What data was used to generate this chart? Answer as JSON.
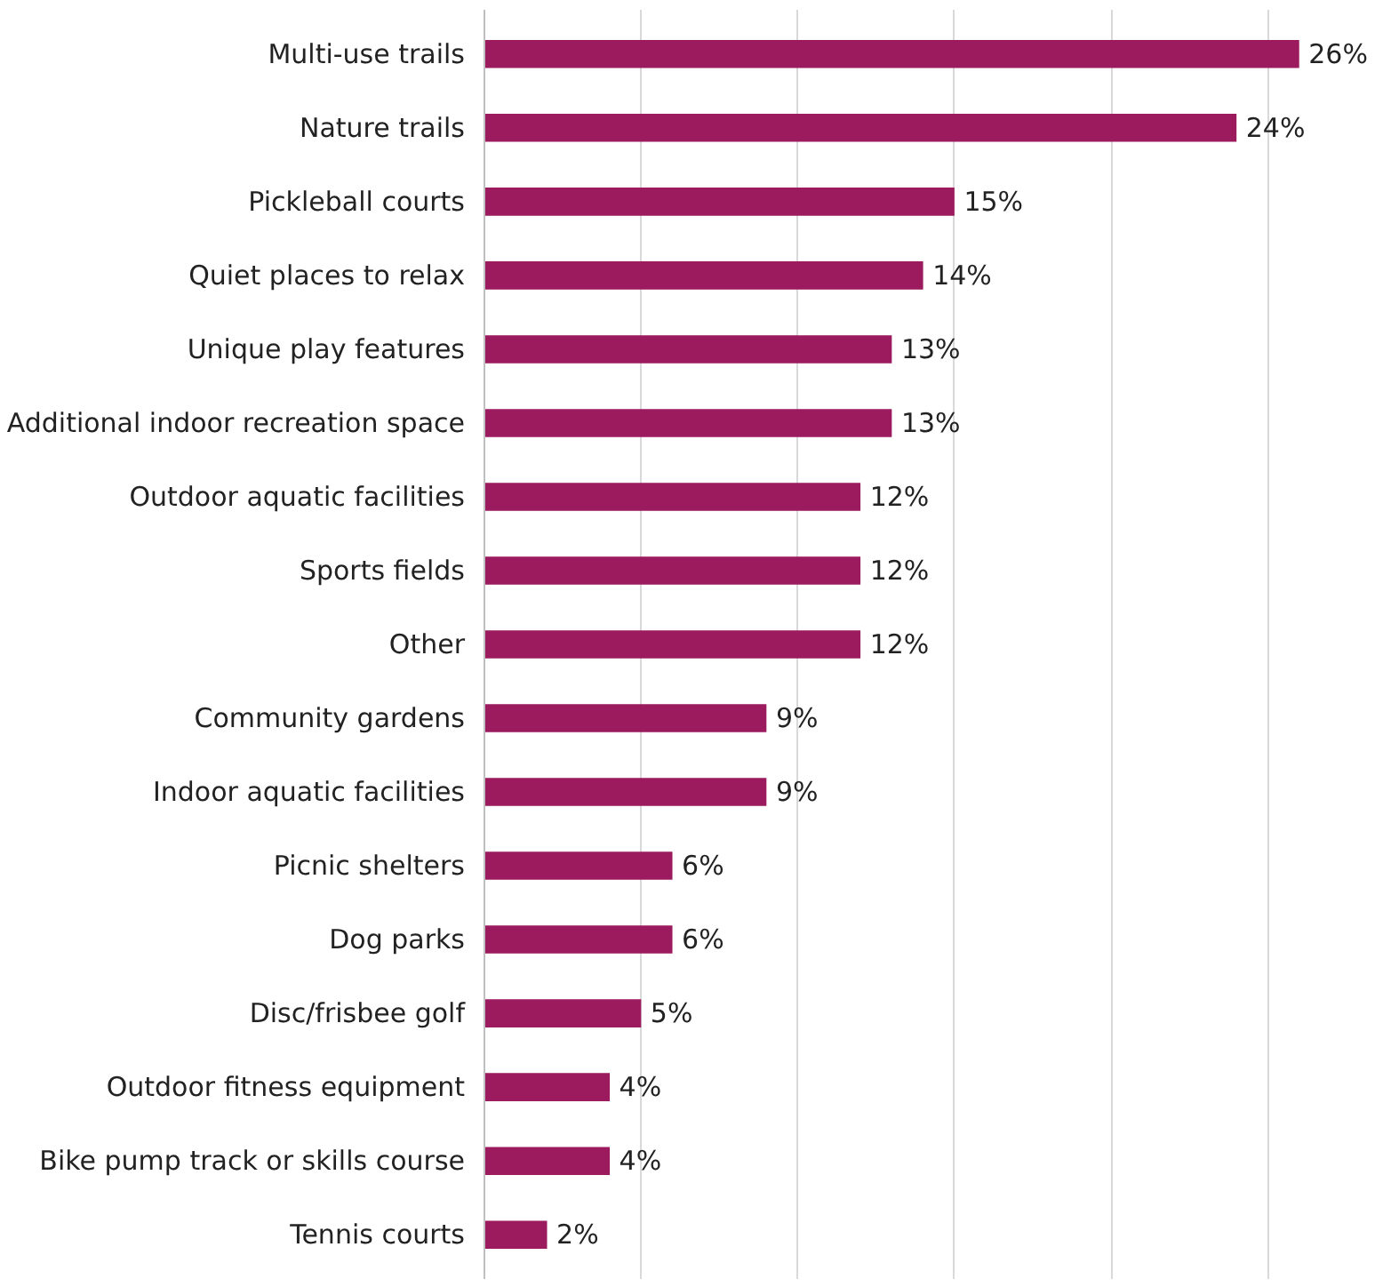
{
  "chart_data": {
    "type": "bar",
    "orientation": "horizontal",
    "categories": [
      "Multi-use trails",
      "Nature trails",
      "Pickleball courts",
      "Quiet places to relax",
      "Unique play features",
      "Additional indoor recreation space",
      "Outdoor aquatic facilities",
      "Sports fields",
      "Other",
      "Community gardens",
      "Indoor aquatic facilities",
      "Picnic shelters",
      "Dog parks",
      "Disc/frisbee golf",
      "Outdoor fitness equipment",
      "Bike pump track or skills course",
      "Tennis courts"
    ],
    "values": [
      26,
      24,
      15,
      14,
      13,
      13,
      12,
      12,
      12,
      9,
      9,
      6,
      6,
      5,
      4,
      4,
      2
    ],
    "value_labels": [
      "26%",
      "24%",
      "15%",
      "14%",
      "13%",
      "13%",
      "12%",
      "12%",
      "12%",
      "9%",
      "9%",
      "6%",
      "6%",
      "5%",
      "4%",
      "4%",
      "2%"
    ],
    "color": "#9b1b5e",
    "xticks": [
      {
        "value": 0,
        "label": null
      },
      {
        "value": 5,
        "label": null
      },
      {
        "value": 10,
        "label": null
      },
      {
        "value": 15,
        "label": null
      },
      {
        "value": 20,
        "label": null
      },
      {
        "value": 25,
        "label": null
      }
    ],
    "grid": "x",
    "tick_labels": "y"
  }
}
